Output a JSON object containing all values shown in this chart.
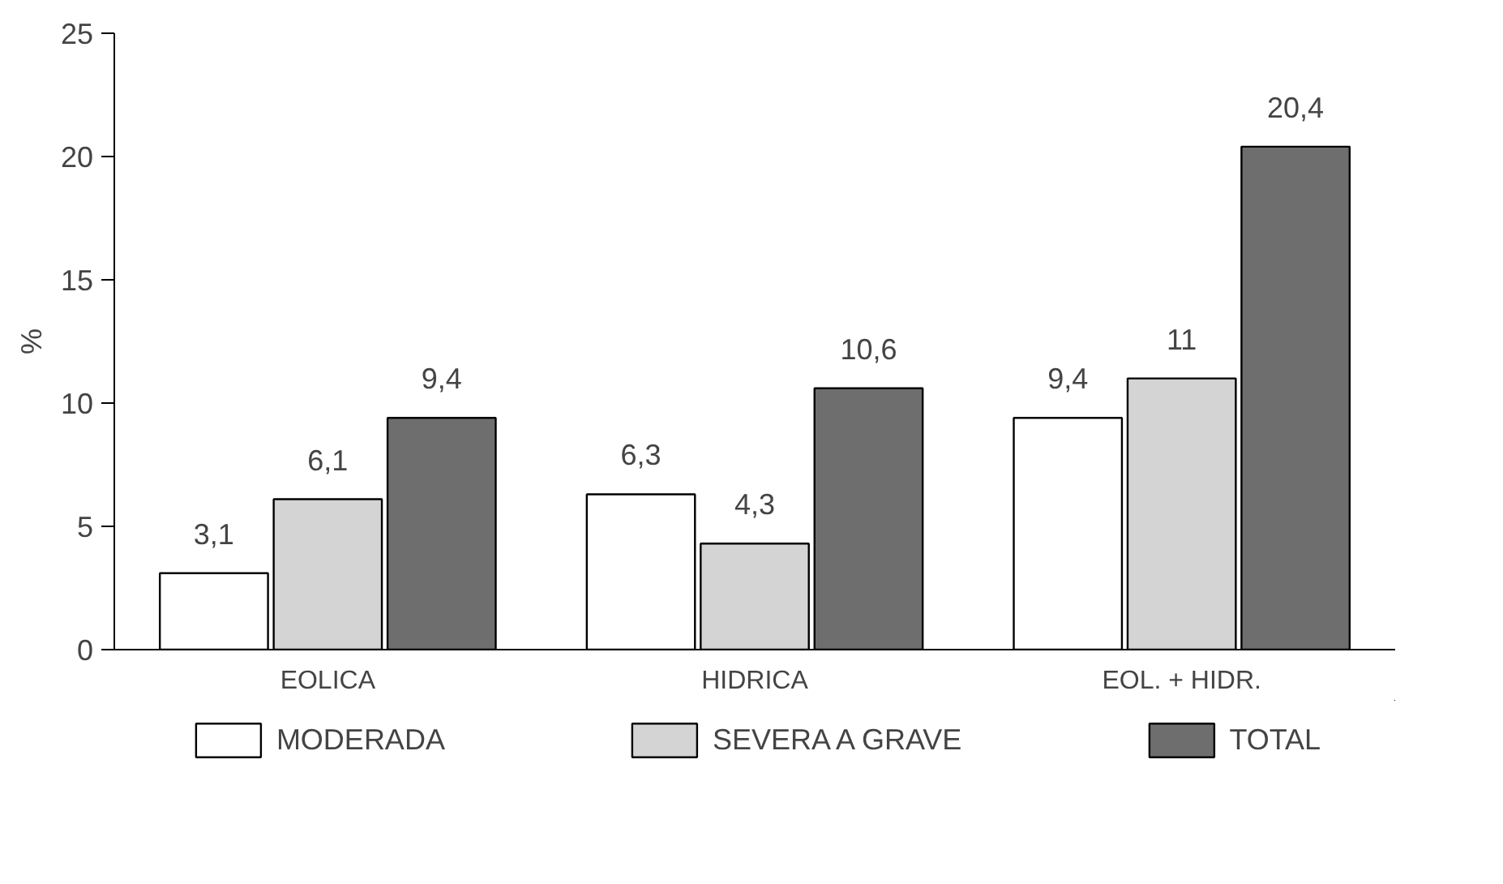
{
  "chart_data": {
    "type": "bar",
    "ylabel": "%",
    "categories": [
      "EOLICA",
      "HIDRICA",
      "EOL. + HIDR."
    ],
    "series": [
      {
        "name": "MODERADA",
        "color": "#ffffff",
        "values": [
          3.1,
          6.3,
          9.4
        ],
        "value_labels": [
          "3,1",
          "6,3",
          "9,4"
        ]
      },
      {
        "name": "SEVERA A GRAVE",
        "color": "#d4d4d4",
        "values": [
          6.1,
          4.3,
          11
        ],
        "value_labels": [
          "6,1",
          "4,3",
          "11"
        ]
      },
      {
        "name": "TOTAL",
        "color": "#6e6e6e",
        "values": [
          9.4,
          10.6,
          20.4
        ],
        "value_labels": [
          "9,4",
          "10,6",
          "20,4"
        ]
      }
    ],
    "ylim": [
      0,
      25
    ],
    "yticks": [
      0,
      5,
      10,
      15,
      20,
      25
    ],
    "grid": false,
    "legend": "bottom"
  }
}
